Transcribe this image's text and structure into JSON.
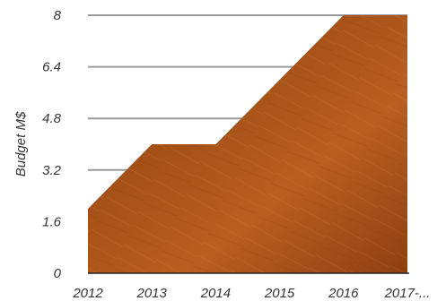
{
  "chart_data": {
    "type": "area",
    "categories": [
      "2012",
      "2013",
      "2014",
      "2015",
      "2016",
      "2017-..."
    ],
    "values": [
      2,
      4,
      4,
      6,
      8,
      8
    ],
    "title": "",
    "xlabel": "",
    "ylabel": "Budget M$",
    "ylim": [
      0,
      8
    ],
    "yticks": [
      "0",
      "1.6",
      "3.2",
      "4.8",
      "6.4",
      "8"
    ],
    "grid": true,
    "legend": "none",
    "colors": {
      "fill_dark": "#8a3d10",
      "fill_mid": "#b35a1c",
      "fill_light": "#cf7a34",
      "grid": "#9a9a9a",
      "axis": "#222222"
    }
  }
}
